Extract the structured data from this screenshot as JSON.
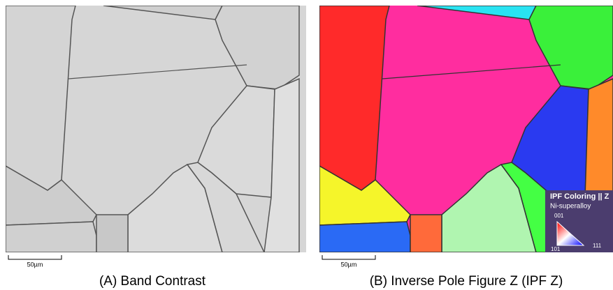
{
  "panels": [
    {
      "scale_bar": "50µm",
      "caption": "(A) Band Contrast"
    },
    {
      "scale_bar": "50µm",
      "caption": "(B) Inverse Pole Figure Z (IPF Z)"
    }
  ],
  "legend": {
    "title": "IPF Coloring || Z",
    "material": "Ni-superalloy",
    "corners": [
      "001",
      "101",
      "111"
    ]
  }
}
